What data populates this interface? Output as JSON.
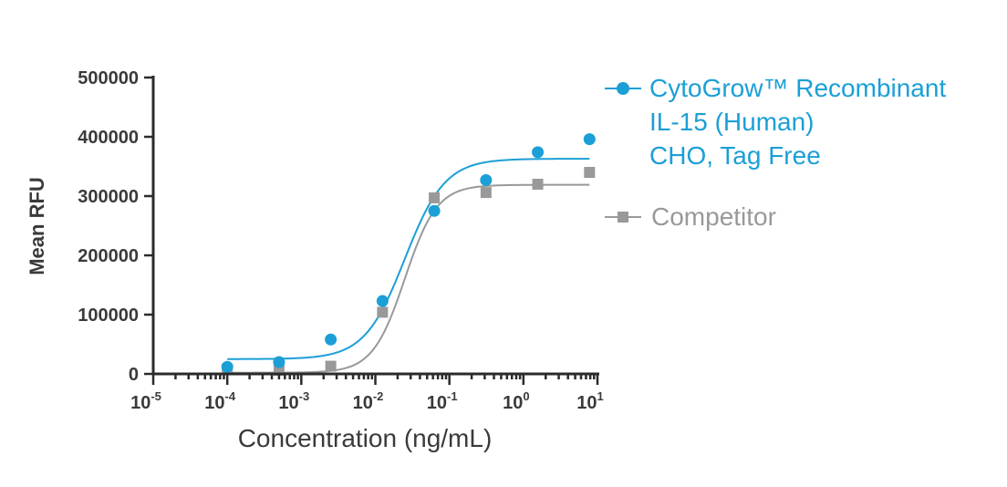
{
  "colors": {
    "series1": "#1b9fd6",
    "series2": "#999999",
    "axis": "#2b2b2b",
    "text": "#3a3a3a"
  },
  "chart_data": {
    "type": "scatter",
    "xscale": "log",
    "xlabel": "Concentration (ng/mL)",
    "ylabel": "Mean RFU",
    "xlim": [
      1e-05,
      10
    ],
    "ylim": [
      0,
      500000
    ],
    "yticks": [
      0,
      100000,
      200000,
      300000,
      400000,
      500000
    ],
    "ytick_labels": [
      "0",
      "100000",
      "200000",
      "300000",
      "400000",
      "500000"
    ],
    "xticks": [
      1e-05,
      0.0001,
      0.001,
      0.01,
      0.1,
      1,
      10
    ],
    "xtick_labels": [
      {
        "base": "10",
        "exp": "-5"
      },
      {
        "base": "10",
        "exp": "-4"
      },
      {
        "base": "10",
        "exp": "-3"
      },
      {
        "base": "10",
        "exp": "-2"
      },
      {
        "base": "10",
        "exp": "-1"
      },
      {
        "base": "10",
        "exp": "0"
      },
      {
        "base": "10",
        "exp": "1"
      }
    ],
    "legend_position": "right",
    "series": [
      {
        "name": "CytoGrow™ Recombinant IL-15 (Human) CHO, Tag Free",
        "legend_lines": [
          "CytoGrow™ Recombinant",
          "IL-15 (Human)",
          "CHO, Tag Free"
        ],
        "marker": "circle",
        "x": [
          0.0001,
          0.0005,
          0.0025,
          0.0125,
          0.0625,
          0.3125,
          1.5625,
          7.8125
        ],
        "y": [
          12000,
          20000,
          58000,
          123000,
          275000,
          327000,
          374000,
          396000
        ],
        "fit": {
          "bottom": 25000,
          "top": 363000,
          "ec50": 0.025,
          "hill": 1.6
        }
      },
      {
        "name": "Competitor",
        "legend_lines": [
          "Competitor"
        ],
        "marker": "square",
        "x": [
          0.0001,
          0.0005,
          0.0025,
          0.0125,
          0.0625,
          0.3125,
          1.5625,
          7.8125
        ],
        "y": [
          8000,
          6000,
          13000,
          104000,
          297000,
          306000,
          320000,
          340000
        ],
        "fit": {
          "bottom": 2000,
          "top": 319000,
          "ec50": 0.025,
          "hill": 2.0
        }
      }
    ]
  }
}
